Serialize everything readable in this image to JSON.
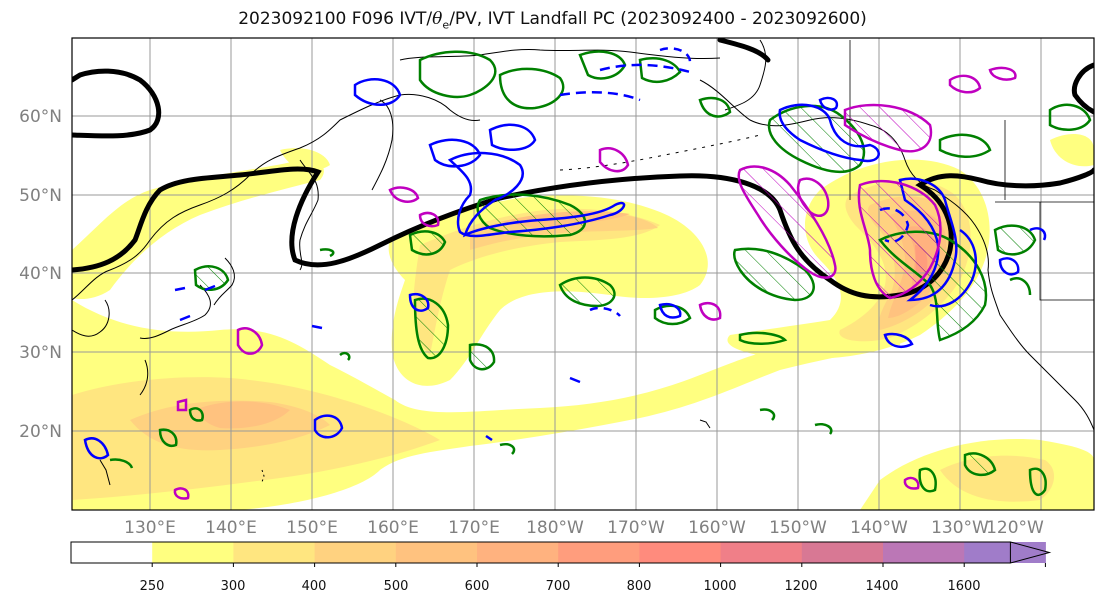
{
  "title": {
    "prefix": "2023092100 F096 IVT/",
    "theta": "θ",
    "sub": "e",
    "suffix": "/PV, IVT Landfall PC (2023092400 - 2023092600)"
  },
  "map": {
    "lat_labels": [
      "60°N",
      "50°N",
      "40°N",
      "30°N",
      "20°N"
    ],
    "lon_labels": [
      "130°E",
      "140°E",
      "150°E",
      "160°E",
      "170°E",
      "180°W",
      "170°W",
      "160°W",
      "150°W",
      "140°W",
      "130°W",
      "120°W"
    ],
    "label_color": "#808080"
  },
  "colorbar": {
    "ticks": [
      "250",
      "300",
      "400",
      "500",
      "600",
      "700",
      "800",
      "1000",
      "1200",
      "1400",
      "1600"
    ],
    "colors": [
      "#ffffff",
      "#ffff80",
      "#ffe680",
      "#ffd280",
      "#ffc27f",
      "#ffb27f",
      "#ff9d7d",
      "#ff8b7d",
      "#f07f88",
      "#d87894",
      "#bb77b6",
      "#a07cc9"
    ]
  },
  "legend_colors": {
    "theta_e": "#0000ff",
    "pv": "#008000",
    "landfall": "#c000c0",
    "ivt_pc": "#000000"
  }
}
